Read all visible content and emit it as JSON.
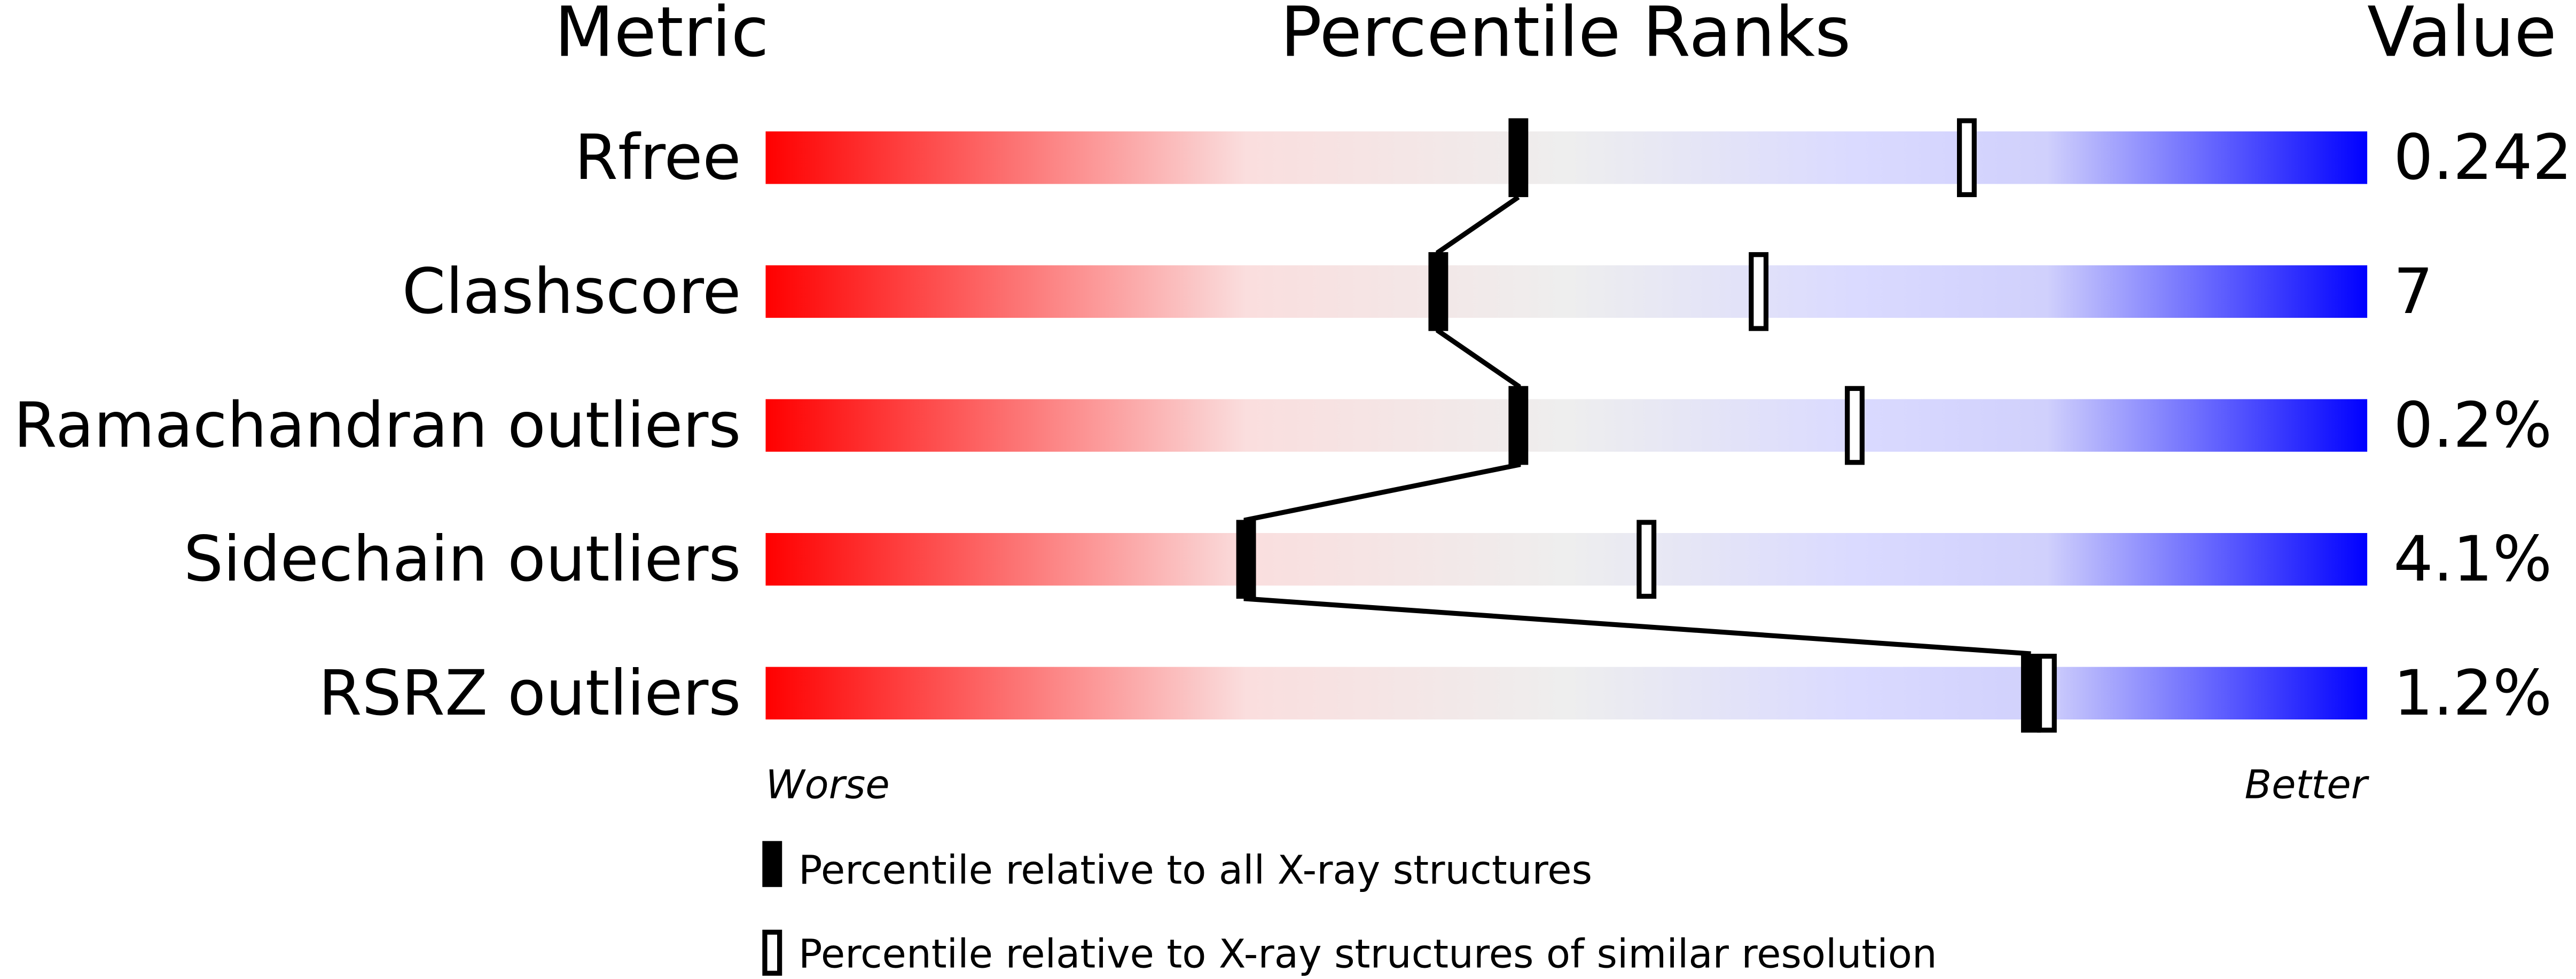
{
  "chart_data": {
    "type": "table",
    "headers": {
      "metric": "Metric",
      "ranks": "Percentile Ranks",
      "value": "Value"
    },
    "x_range": [
      0,
      100
    ],
    "scale_labels": {
      "worse": "Worse",
      "better": "Better"
    },
    "gradient_colors": [
      "#ff0000",
      "#fadede",
      "#eeeeee",
      "#dadaff",
      "#0000ff"
    ],
    "rows": [
      {
        "metric": "Rfree",
        "value": "0.242",
        "percentile_all": 47,
        "percentile_similar": 75
      },
      {
        "metric": "Clashscore",
        "value": "7",
        "percentile_all": 42,
        "percentile_similar": 62
      },
      {
        "metric": "Ramachandran outliers",
        "value": "0.2%",
        "percentile_all": 47,
        "percentile_similar": 68
      },
      {
        "metric": "Sidechain outliers",
        "value": "4.1%",
        "percentile_all": 30,
        "percentile_similar": 55
      },
      {
        "metric": "RSRZ outliers",
        "value": "1.2%",
        "percentile_all": 79,
        "percentile_similar": 80
      }
    ],
    "legend": [
      {
        "marker": "filled",
        "label": "Percentile relative to all X-ray structures"
      },
      {
        "marker": "open",
        "label": "Percentile relative to X-ray structures of similar resolution"
      }
    ]
  }
}
